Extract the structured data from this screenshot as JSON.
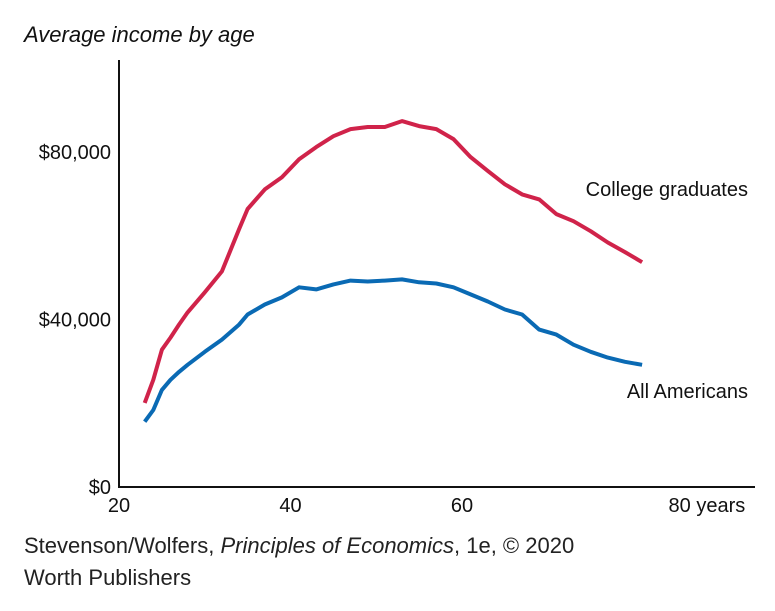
{
  "chart_data": {
    "type": "line",
    "title": "Average income by age",
    "x": [
      23,
      24,
      25,
      26,
      27,
      28,
      30,
      32,
      34,
      35,
      37,
      39,
      41,
      43,
      45,
      47,
      49,
      51,
      53,
      55,
      57,
      59,
      61,
      63,
      65,
      67,
      69,
      71,
      73,
      75,
      77,
      79,
      81
    ],
    "series": [
      {
        "name": "College graduates",
        "color": "#d0234a",
        "values": [
          20100,
          25600,
          32800,
          35700,
          38800,
          41700,
          46500,
          51500,
          61600,
          66400,
          71100,
          74000,
          78300,
          81200,
          83800,
          85500,
          86000,
          86000,
          87400,
          86200,
          85500,
          83100,
          78800,
          75500,
          72300,
          69900,
          68700,
          65200,
          63500,
          61100,
          58400,
          56100,
          53700
        ]
      },
      {
        "name": "All Americans",
        "color": "#0a6ab4",
        "values": [
          15600,
          18400,
          23200,
          25600,
          27500,
          29200,
          32300,
          35200,
          38800,
          41200,
          43600,
          45300,
          47700,
          47200,
          48400,
          49300,
          49100,
          49300,
          49600,
          48900,
          48600,
          47700,
          46000,
          44300,
          42400,
          41200,
          37600,
          36400,
          34000,
          32300,
          30900,
          29900,
          29200
        ]
      }
    ],
    "xlim": [
      20,
      94
    ],
    "xticks": [
      20,
      40,
      60,
      {
        "value": 80,
        "label": "80 years"
      }
    ],
    "ylim": [
      0,
      102000
    ],
    "yticks": [
      {
        "value": 0,
        "label": "$0"
      },
      {
        "value": 40000,
        "label": "$40,000"
      },
      {
        "value": 80000,
        "label": "$80,000"
      }
    ],
    "grid": false
  },
  "source": {
    "line1_prefix": "Stevenson/Wolfers, ",
    "line1_italic": "Principles of Economics",
    "line1_suffix": ", 1e, © 2020",
    "line2": "Worth Publishers"
  }
}
